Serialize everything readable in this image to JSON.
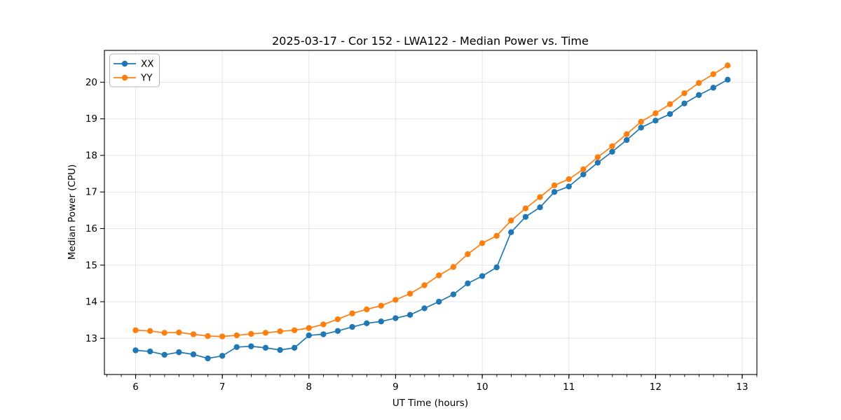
{
  "chart_data": {
    "type": "line",
    "title": "2025-03-17 - Cor 152 - LWA122 - Median Power vs. Time",
    "xlabel": "UT Time (hours)",
    "ylabel": "Median Power (CPU)",
    "xlim": [
      5.64,
      13.17
    ],
    "ylim": [
      12.01,
      20.87
    ],
    "xticks": [
      6,
      7,
      8,
      9,
      10,
      11,
      12,
      13
    ],
    "yticks": [
      13,
      14,
      15,
      16,
      17,
      18,
      19,
      20
    ],
    "minor_tick_step_x": 0.1667,
    "grid": true,
    "grid_color": "#e5e5e5",
    "spine_color": "#000000",
    "legend_position": "upper-left",
    "x": [
      6.0,
      6.167,
      6.333,
      6.5,
      6.667,
      6.833,
      7.0,
      7.167,
      7.333,
      7.5,
      7.667,
      7.833,
      8.0,
      8.167,
      8.333,
      8.5,
      8.667,
      8.833,
      9.0,
      9.167,
      9.333,
      9.5,
      9.667,
      9.833,
      10.0,
      10.167,
      10.333,
      10.5,
      10.667,
      10.833,
      11.0,
      11.167,
      11.333,
      11.5,
      11.667,
      11.833,
      12.0,
      12.167,
      12.333,
      12.5,
      12.667,
      12.833
    ],
    "series": [
      {
        "name": "XX",
        "color": "#1f77b4",
        "values": [
          12.67,
          12.64,
          12.55,
          12.62,
          12.56,
          12.45,
          12.52,
          12.76,
          12.78,
          12.74,
          12.68,
          12.74,
          13.08,
          13.11,
          13.2,
          13.31,
          13.41,
          13.46,
          13.55,
          13.64,
          13.82,
          14.0,
          14.2,
          14.5,
          14.7,
          14.94,
          15.9,
          16.32,
          16.58,
          17.0,
          17.15,
          17.48,
          17.8,
          18.1,
          18.42,
          18.76,
          18.95,
          19.13,
          19.42,
          19.65,
          19.85,
          20.07
        ]
      },
      {
        "name": "YY",
        "color": "#ff7f0e",
        "values": [
          13.22,
          13.2,
          13.15,
          13.16,
          13.11,
          13.06,
          13.05,
          13.08,
          13.12,
          13.15,
          13.19,
          13.22,
          13.28,
          13.38,
          13.52,
          13.68,
          13.79,
          13.89,
          14.05,
          14.22,
          14.45,
          14.72,
          14.95,
          15.3,
          15.6,
          15.8,
          16.22,
          16.55,
          16.86,
          17.18,
          17.35,
          17.62,
          17.95,
          18.25,
          18.58,
          18.92,
          19.15,
          19.4,
          19.7,
          19.98,
          20.22,
          20.46
        ]
      }
    ]
  }
}
